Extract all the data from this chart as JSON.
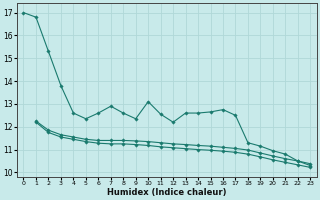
{
  "xlabel": "Humidex (Indice chaleur)",
  "xlim": [
    -0.5,
    23.5
  ],
  "ylim": [
    9.8,
    17.4
  ],
  "bg_color": "#c8eaea",
  "grid_color": "#b0d8d8",
  "line_color": "#1a7a6e",
  "xticks": [
    0,
    1,
    2,
    3,
    4,
    5,
    6,
    7,
    8,
    9,
    10,
    11,
    12,
    13,
    14,
    15,
    16,
    17,
    18,
    19,
    20,
    21,
    22,
    23
  ],
  "yticks": [
    10,
    11,
    12,
    13,
    14,
    15,
    16,
    17
  ],
  "line1_x": [
    0,
    1,
    2,
    3,
    4,
    5,
    6,
    7,
    8,
    9,
    10,
    11,
    12,
    13,
    14,
    15,
    16,
    17,
    18,
    19,
    20,
    21,
    22,
    23
  ],
  "line1_y": [
    17.0,
    16.8,
    15.3,
    13.8,
    12.6,
    12.35,
    12.6,
    12.9,
    12.6,
    12.35,
    13.1,
    12.55,
    12.2,
    12.6,
    12.6,
    12.65,
    12.75,
    12.5,
    11.3,
    11.15,
    10.95,
    10.8,
    10.5,
    10.3
  ],
  "line2_x": [
    1,
    2,
    3,
    4,
    5,
    6,
    7,
    8,
    9,
    10,
    11,
    12,
    13,
    14,
    15,
    16,
    17,
    18,
    19,
    20,
    21,
    22,
    23
  ],
  "line2_y": [
    12.25,
    11.85,
    11.65,
    11.55,
    11.45,
    11.4,
    11.4,
    11.4,
    11.38,
    11.35,
    11.3,
    11.25,
    11.22,
    11.18,
    11.15,
    11.1,
    11.05,
    10.98,
    10.85,
    10.72,
    10.6,
    10.5,
    10.38
  ],
  "line3_x": [
    1,
    2,
    3,
    4,
    5,
    6,
    7,
    8,
    9,
    10,
    11,
    12,
    13,
    14,
    15,
    16,
    17,
    18,
    19,
    20,
    21,
    22,
    23
  ],
  "line3_y": [
    12.2,
    11.75,
    11.55,
    11.45,
    11.35,
    11.28,
    11.25,
    11.25,
    11.22,
    11.18,
    11.12,
    11.08,
    11.04,
    11.0,
    10.97,
    10.93,
    10.88,
    10.8,
    10.68,
    10.55,
    10.44,
    10.33,
    10.22
  ]
}
